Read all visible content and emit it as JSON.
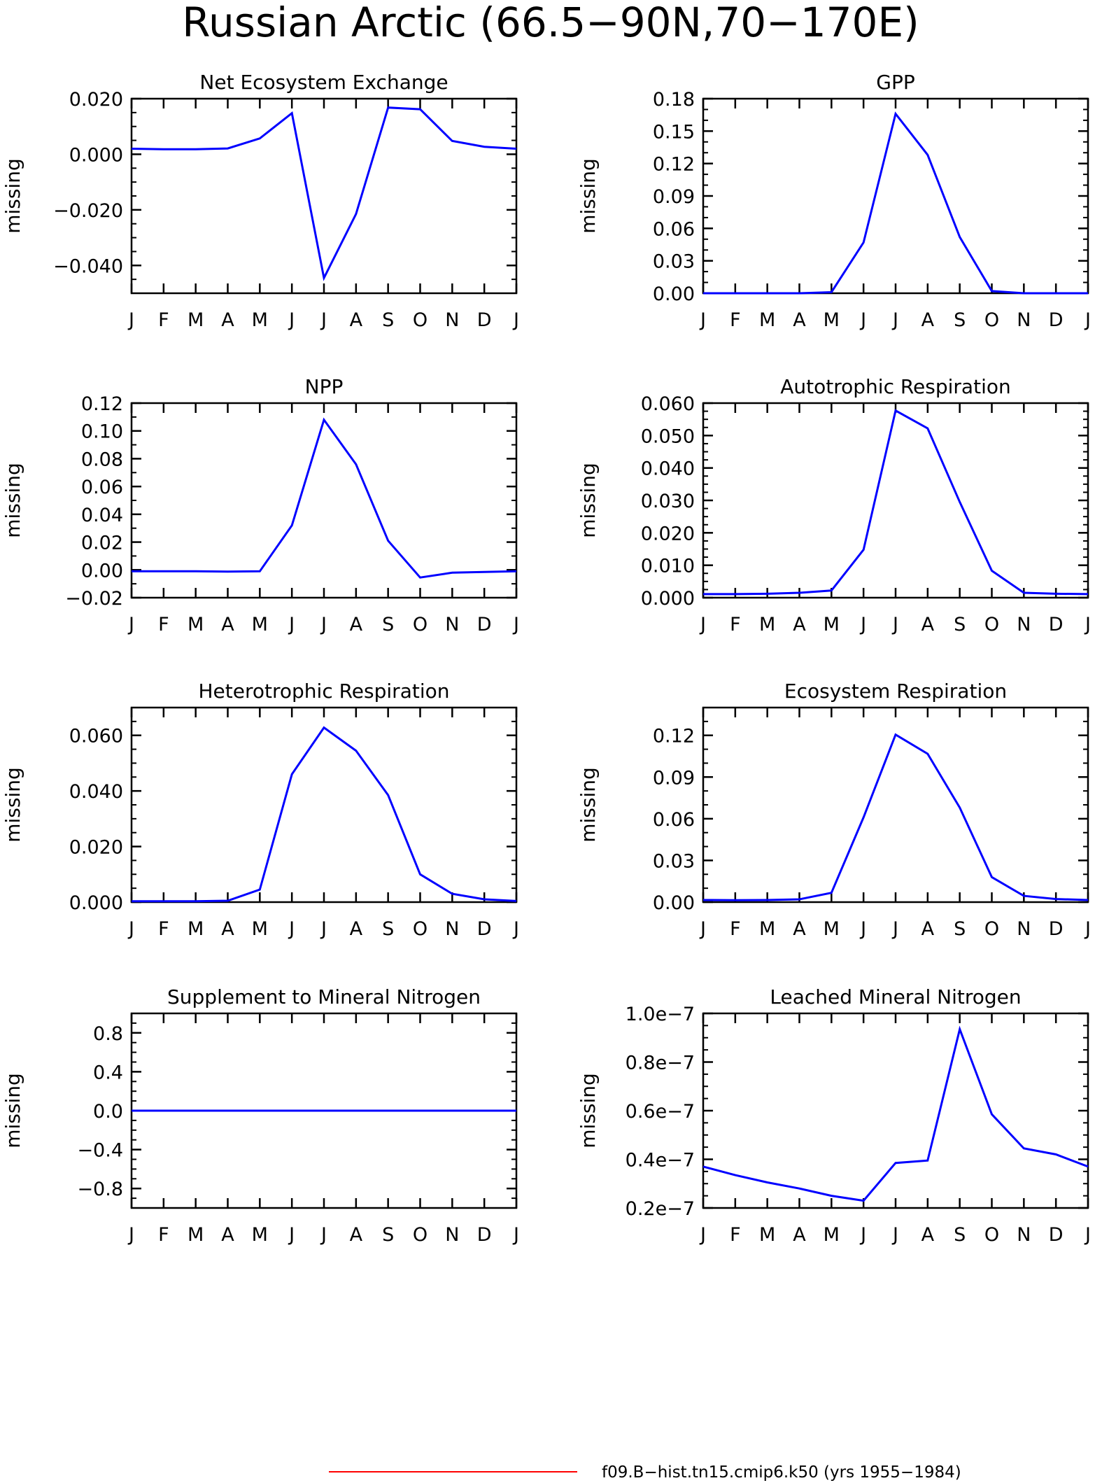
{
  "figure_title": "Russian Arctic (66.5−90N,70−170E)",
  "legend": {
    "label": "f09.B−hist.tn15.cmip6.k50 (yrs 1955−1984)",
    "color": "#ff0000"
  },
  "line_color": "#0000ff",
  "chart_data": [
    {
      "type": "line",
      "title": "Net Ecosystem Exchange",
      "ylabel": "missing",
      "xlabel": "",
      "categories": [
        "J",
        "F",
        "M",
        "A",
        "M",
        "J",
        "J",
        "A",
        "S",
        "O",
        "N",
        "D",
        "J"
      ],
      "values": [
        0.002,
        0.0018,
        0.0018,
        0.0021,
        0.0057,
        0.0148,
        -0.0445,
        -0.0215,
        0.0168,
        0.0162,
        0.0048,
        0.0027,
        0.002
      ],
      "ylim": [
        -0.05,
        0.02
      ],
      "yticks": [
        -0.04,
        -0.02,
        0.0,
        0.02
      ],
      "ytick_labels": [
        "−0.040",
        "−0.020",
        "0.000",
        "0.020"
      ],
      "minor_step": 0.005
    },
    {
      "type": "line",
      "title": "GPP",
      "ylabel": "missing",
      "xlabel": "",
      "categories": [
        "J",
        "F",
        "M",
        "A",
        "M",
        "J",
        "J",
        "A",
        "S",
        "O",
        "N",
        "D",
        "J"
      ],
      "values": [
        0.0,
        0.0,
        0.0,
        0.0,
        0.001,
        0.047,
        0.166,
        0.128,
        0.052,
        0.002,
        0.0,
        0.0,
        0.0
      ],
      "ylim": [
        0,
        0.18
      ],
      "yticks": [
        0.0,
        0.03,
        0.06,
        0.09,
        0.12,
        0.15,
        0.18
      ],
      "ytick_labels": [
        "0.00",
        "0.03",
        "0.06",
        "0.09",
        "0.12",
        "0.15",
        "0.18"
      ],
      "minor_step": 0.01
    },
    {
      "type": "line",
      "title": "NPP",
      "ylabel": "missing",
      "xlabel": "",
      "categories": [
        "J",
        "F",
        "M",
        "A",
        "M",
        "J",
        "J",
        "A",
        "S",
        "O",
        "N",
        "D",
        "J"
      ],
      "values": [
        -0.001,
        -0.001,
        -0.001,
        -0.0012,
        -0.001,
        0.032,
        0.108,
        0.076,
        0.021,
        -0.0055,
        -0.002,
        -0.0015,
        -0.001
      ],
      "ylim": [
        -0.02,
        0.12
      ],
      "yticks": [
        -0.02,
        0.0,
        0.02,
        0.04,
        0.06,
        0.08,
        0.1,
        0.12
      ],
      "ytick_labels": [
        "−0.02",
        "0.00",
        "0.02",
        "0.04",
        "0.06",
        "0.08",
        "0.10",
        "0.12"
      ],
      "minor_step": 0.01
    },
    {
      "type": "line",
      "title": "Autotrophic Respiration",
      "ylabel": "missing",
      "xlabel": "",
      "categories": [
        "J",
        "F",
        "M",
        "A",
        "M",
        "J",
        "J",
        "A",
        "S",
        "O",
        "N",
        "D",
        "J"
      ],
      "values": [
        0.0011,
        0.0011,
        0.0012,
        0.0015,
        0.0022,
        0.0148,
        0.0577,
        0.0522,
        0.0295,
        0.0083,
        0.0015,
        0.0012,
        0.0011
      ],
      "ylim": [
        0,
        0.06
      ],
      "yticks": [
        0.0,
        0.01,
        0.02,
        0.03,
        0.04,
        0.05,
        0.06
      ],
      "ytick_labels": [
        "0.000",
        "0.010",
        "0.020",
        "0.030",
        "0.040",
        "0.050",
        "0.060"
      ],
      "minor_step": 0.0025
    },
    {
      "type": "line",
      "title": "Heterotrophic Respiration",
      "ylabel": "missing",
      "xlabel": "",
      "categories": [
        "J",
        "F",
        "M",
        "A",
        "M",
        "J",
        "J",
        "A",
        "S",
        "O",
        "N",
        "D",
        "J"
      ],
      "values": [
        0.0003,
        0.0003,
        0.0003,
        0.0005,
        0.0045,
        0.046,
        0.0628,
        0.0545,
        0.0385,
        0.01,
        0.003,
        0.001,
        0.0004
      ],
      "ylim": [
        0,
        0.07
      ],
      "yticks": [
        0.0,
        0.02,
        0.04,
        0.06
      ],
      "ytick_labels": [
        "0.000",
        "0.020",
        "0.040",
        "0.060"
      ],
      "minor_step": 0.005
    },
    {
      "type": "line",
      "title": "Ecosystem Respiration",
      "ylabel": "missing",
      "xlabel": "",
      "categories": [
        "J",
        "F",
        "M",
        "A",
        "M",
        "J",
        "J",
        "A",
        "S",
        "O",
        "N",
        "D",
        "J"
      ],
      "values": [
        0.0015,
        0.0014,
        0.0015,
        0.002,
        0.0067,
        0.061,
        0.1205,
        0.1067,
        0.068,
        0.018,
        0.0045,
        0.0022,
        0.0015
      ],
      "ylim": [
        0,
        0.14
      ],
      "yticks": [
        0.0,
        0.03,
        0.06,
        0.09,
        0.12
      ],
      "ytick_labels": [
        "0.00",
        "0.03",
        "0.06",
        "0.09",
        "0.12"
      ],
      "minor_step": 0.01
    },
    {
      "type": "line",
      "title": "Supplement to Mineral Nitrogen",
      "ylabel": "missing",
      "xlabel": "",
      "categories": [
        "J",
        "F",
        "M",
        "A",
        "M",
        "J",
        "J",
        "A",
        "S",
        "O",
        "N",
        "D",
        "J"
      ],
      "values": [
        0,
        0,
        0,
        0,
        0,
        0,
        0,
        0,
        0,
        0,
        0,
        0,
        0
      ],
      "ylim": [
        -1.0,
        1.0
      ],
      "yticks": [
        -0.8,
        -0.4,
        0.0,
        0.4,
        0.8
      ],
      "ytick_labels": [
        "−0.8",
        "−0.4",
        "0.0",
        "0.4",
        "0.8"
      ],
      "minor_step": 0.1
    },
    {
      "type": "line",
      "title": "Leached Mineral Nitrogen",
      "ylabel": "missing",
      "xlabel": "",
      "categories": [
        "J",
        "F",
        "M",
        "A",
        "M",
        "J",
        "J",
        "A",
        "S",
        "O",
        "N",
        "D",
        "J"
      ],
      "values": [
        3.7e-08,
        3.35e-08,
        3.05e-08,
        2.8e-08,
        2.5e-08,
        2.3e-08,
        3.85e-08,
        3.95e-08,
        9.35e-08,
        5.85e-08,
        4.45e-08,
        4.2e-08,
        3.7e-08
      ],
      "ylim": [
        2e-08,
        1e-07
      ],
      "yticks": [
        2e-08,
        4e-08,
        6e-08,
        8e-08,
        1e-07
      ],
      "ytick_labels": [
        "0.2e−7",
        "0.4e−7",
        "0.6e−7",
        "0.8e−7",
        "1.0e−7"
      ],
      "minor_step": 5e-09
    }
  ]
}
